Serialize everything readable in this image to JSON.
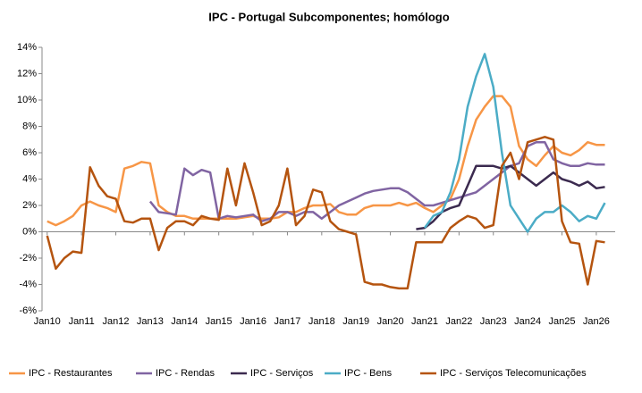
{
  "chart_data": {
    "type": "line",
    "title": "IPC - Portugal Subcomponentes; homólogo",
    "x": [
      2010,
      2010.25,
      2010.5,
      2010.75,
      2011,
      2011.25,
      2011.5,
      2011.75,
      2012,
      2012.25,
      2012.5,
      2012.75,
      2013,
      2013.25,
      2013.5,
      2013.75,
      2014,
      2014.25,
      2014.5,
      2014.75,
      2015,
      2015.25,
      2015.5,
      2015.75,
      2016,
      2016.25,
      2016.5,
      2016.75,
      2017,
      2017.25,
      2017.5,
      2017.75,
      2018,
      2018.25,
      2018.5,
      2018.75,
      2019,
      2019.25,
      2019.5,
      2019.75,
      2020,
      2020.25,
      2020.5,
      2020.75,
      2021,
      2021.25,
      2021.5,
      2021.75,
      2022,
      2022.25,
      2022.5,
      2022.75,
      2023,
      2023.25,
      2023.5,
      2023.75,
      2024,
      2024.25,
      2024.5,
      2024.75,
      2025,
      2025.25,
      2025.5,
      2025.75,
      2026,
      2026.25
    ],
    "xlim": [
      2009.85,
      2026.55
    ],
    "xticks": [
      {
        "value": 2010,
        "label": "Jan10"
      },
      {
        "value": 2011,
        "label": "Jan11"
      },
      {
        "value": 2012,
        "label": "Jan12"
      },
      {
        "value": 2013,
        "label": "Jan13"
      },
      {
        "value": 2014,
        "label": "Jan14"
      },
      {
        "value": 2015,
        "label": "Jan15"
      },
      {
        "value": 2016,
        "label": "Jan16"
      },
      {
        "value": 2017,
        "label": "Jan17"
      },
      {
        "value": 2018,
        "label": "Jan18"
      },
      {
        "value": 2019,
        "label": "Jan19"
      },
      {
        "value": 2020,
        "label": "Jan20"
      },
      {
        "value": 2021,
        "label": "Jan21"
      },
      {
        "value": 2022,
        "label": "Jan22"
      },
      {
        "value": 2023,
        "label": "Jan23"
      },
      {
        "value": 2024,
        "label": "Jan24"
      },
      {
        "value": 2025,
        "label": "Jan25"
      },
      {
        "value": 2026,
        "label": "Jan26"
      }
    ],
    "ylim": [
      -6,
      14
    ],
    "yticks": [
      {
        "value": -6,
        "label": "-6%"
      },
      {
        "value": -4,
        "label": "-4%"
      },
      {
        "value": -2,
        "label": "-2%"
      },
      {
        "value": 0,
        "label": "0%"
      },
      {
        "value": 2,
        "label": "2%"
      },
      {
        "value": 4,
        "label": "4%"
      },
      {
        "value": 6,
        "label": "6%"
      },
      {
        "value": 8,
        "label": "8%"
      },
      {
        "value": 10,
        "label": "10%"
      },
      {
        "value": 12,
        "label": "12%"
      },
      {
        "value": 14,
        "label": "14%"
      }
    ],
    "series": [
      {
        "name": "IPC - Restaurantes",
        "color": "#f79646",
        "values": [
          0.8,
          0.5,
          0.8,
          1.2,
          2.0,
          2.3,
          2.0,
          1.8,
          1.5,
          4.8,
          5.0,
          5.3,
          5.2,
          2.0,
          1.5,
          1.2,
          1.2,
          1.0,
          1.0,
          1.0,
          1.0,
          1.0,
          1.0,
          1.1,
          1.2,
          1.0,
          1.0,
          1.1,
          1.5,
          1.5,
          1.8,
          2.0,
          2.0,
          2.1,
          1.5,
          1.3,
          1.3,
          1.8,
          2.0,
          2.0,
          2.0,
          2.2,
          2.0,
          2.2,
          1.8,
          1.5,
          2.0,
          2.5,
          4.0,
          6.5,
          8.5,
          9.5,
          10.3,
          10.3,
          9.5,
          6.5,
          5.5,
          5.0,
          5.8,
          6.5,
          6.0,
          5.8,
          6.2,
          6.8,
          6.6,
          6.6
        ]
      },
      {
        "name": "IPC - Rendas",
        "color": "#8064a2",
        "values": [
          null,
          null,
          null,
          null,
          null,
          null,
          null,
          null,
          null,
          null,
          null,
          null,
          2.3,
          1.5,
          1.4,
          1.3,
          4.8,
          4.3,
          4.7,
          4.5,
          1.0,
          1.2,
          1.1,
          1.2,
          1.3,
          0.8,
          1.0,
          1.5,
          1.5,
          1.2,
          1.5,
          1.5,
          1.0,
          1.5,
          2.0,
          2.3,
          2.6,
          2.9,
          3.1,
          3.2,
          3.3,
          3.3,
          3.0,
          2.5,
          2.0,
          2.0,
          2.2,
          2.4,
          2.6,
          2.8,
          3.0,
          3.5,
          4.0,
          4.5,
          5.0,
          5.2,
          6.5,
          6.8,
          6.8,
          5.5,
          5.2,
          5.0,
          5.0,
          5.2,
          5.1,
          5.1
        ]
      },
      {
        "name": "IPC - Serviços",
        "color": "#3b2a4f",
        "values": [
          null,
          null,
          null,
          null,
          null,
          null,
          null,
          null,
          null,
          null,
          null,
          null,
          null,
          null,
          null,
          null,
          null,
          null,
          null,
          null,
          null,
          null,
          null,
          null,
          null,
          null,
          null,
          null,
          null,
          null,
          null,
          null,
          null,
          null,
          null,
          null,
          null,
          null,
          null,
          null,
          null,
          null,
          null,
          0.2,
          0.3,
          0.8,
          1.5,
          1.8,
          2.0,
          3.5,
          5.0,
          5.0,
          5.0,
          4.8,
          5.0,
          4.5,
          4.0,
          3.5,
          4.0,
          4.5,
          4.0,
          3.8,
          3.5,
          3.8,
          3.3,
          3.4
        ]
      },
      {
        "name": "IPC - Bens",
        "color": "#4bacc6",
        "values": [
          null,
          null,
          null,
          null,
          null,
          null,
          null,
          null,
          null,
          null,
          null,
          null,
          null,
          null,
          null,
          null,
          null,
          null,
          null,
          null,
          null,
          null,
          null,
          null,
          null,
          null,
          null,
          null,
          null,
          null,
          null,
          null,
          null,
          null,
          null,
          null,
          null,
          null,
          null,
          null,
          null,
          null,
          null,
          null,
          0.3,
          1.2,
          1.5,
          3.0,
          5.5,
          9.5,
          11.8,
          13.5,
          11.0,
          6.0,
          2.0,
          1.0,
          0.0,
          1.0,
          1.5,
          1.5,
          2.0,
          1.5,
          0.8,
          1.2,
          1.0,
          2.2
        ]
      },
      {
        "name": "IPC - Serviços Telecomunicações",
        "color": "#b5540f",
        "values": [
          -0.3,
          -2.8,
          -2.0,
          -1.5,
          -1.6,
          4.9,
          3.5,
          2.7,
          2.5,
          0.8,
          0.7,
          1.0,
          1.0,
          -1.4,
          0.3,
          0.8,
          0.8,
          0.5,
          1.2,
          1.0,
          0.9,
          4.8,
          2.0,
          5.2,
          3.0,
          0.5,
          0.8,
          2.0,
          4.8,
          0.5,
          1.2,
          3.2,
          3.0,
          0.8,
          0.2,
          0.0,
          -0.2,
          -3.8,
          -4.0,
          -4.0,
          -4.2,
          -4.3,
          -4.3,
          -0.8,
          -0.8,
          -0.8,
          -0.8,
          0.3,
          0.8,
          1.2,
          1.0,
          0.3,
          0.5,
          5.0,
          6.0,
          4.0,
          6.8,
          7.0,
          7.2,
          7.0,
          0.8,
          -0.8,
          -0.9,
          -4.0,
          -0.7,
          -0.8
        ]
      }
    ]
  }
}
